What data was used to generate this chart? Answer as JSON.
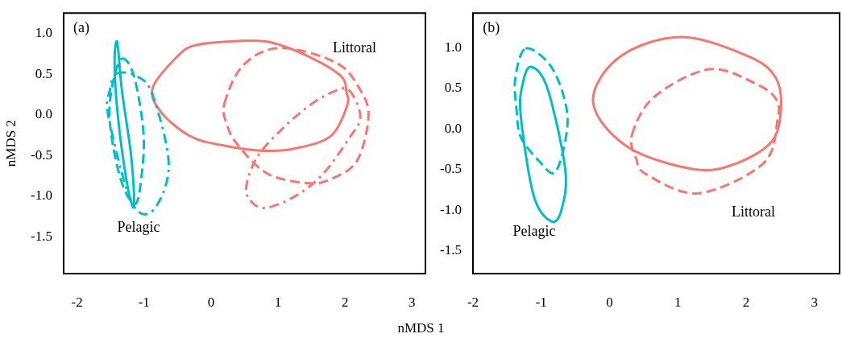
{
  "chart_data": [
    {
      "type": "line",
      "ylabel": "nMDS 2",
      "xlabel": "nMDS 1",
      "xlim": [
        -2.2,
        3.2
      ],
      "ylim": [
        -1.95,
        1.25
      ],
      "xticks": [
        -2,
        -1,
        0,
        1,
        2,
        3
      ],
      "yticks": [
        -1.5,
        {
          "value": -1,
          "label": "-1.0"
        },
        -0.5,
        {
          "value": 0,
          "label": "0.0"
        },
        0.5,
        {
          "value": 1,
          "label": "1.0"
        }
      ],
      "annotations": [
        "(a)",
        "Littoral",
        "Pelagic"
      ]
    },
    {
      "type": "line",
      "xlim": [
        -2.0,
        3.37
      ],
      "ylim": [
        -1.78,
        1.43
      ],
      "xticks": [
        -2,
        -1,
        0,
        1,
        2,
        3
      ],
      "yticks": [
        -1.5,
        {
          "value": -1,
          "label": "-1.0"
        },
        -0.5,
        {
          "value": 0,
          "label": "0.0"
        },
        0.5,
        {
          "value": 1,
          "label": "1.0"
        }
      ],
      "annotations": [
        "(b)",
        "Littoral",
        "Pelagic"
      ]
    }
  ]
}
